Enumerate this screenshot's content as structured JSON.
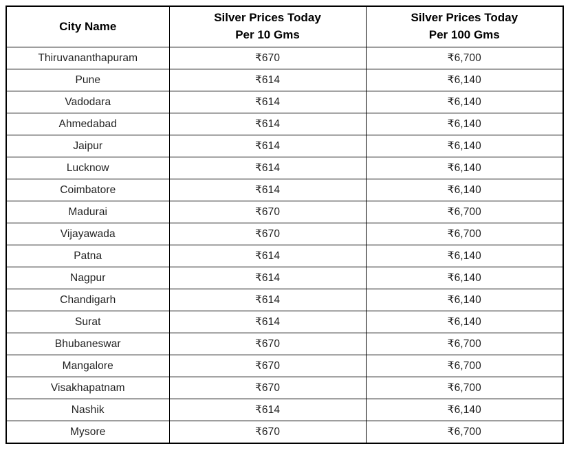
{
  "page": {
    "background": "#ffffff",
    "border_color": "#000000",
    "header_text_color": "#000000",
    "body_text_color": "#1f1f1f"
  },
  "table": {
    "columns": [
      {
        "id": "city-name",
        "label": "City Name"
      },
      {
        "id": "price-per-10-gms",
        "label": "Silver Prices Today\nPer 10 Gms"
      },
      {
        "id": "price-per-100-gms",
        "label": "Silver Prices Today\nPer 100 Gms"
      }
    ],
    "rows": [
      [
        "Thiruvananthapuram",
        "₹670",
        "₹6,700"
      ],
      [
        "Pune",
        "₹614",
        "₹6,140"
      ],
      [
        "Vadodara",
        "₹614",
        "₹6,140"
      ],
      [
        "Ahmedabad",
        "₹614",
        "₹6,140"
      ],
      [
        "Jaipur",
        "₹614",
        "₹6,140"
      ],
      [
        "Lucknow",
        "₹614",
        "₹6,140"
      ],
      [
        "Coimbatore",
        "₹614",
        "₹6,140"
      ],
      [
        "Madurai",
        "₹670",
        "₹6,700"
      ],
      [
        "Vijayawada",
        "₹670",
        "₹6,700"
      ],
      [
        "Patna",
        "₹614",
        "₹6,140"
      ],
      [
        "Nagpur",
        "₹614",
        "₹6,140"
      ],
      [
        "Chandigarh",
        "₹614",
        "₹6,140"
      ],
      [
        "Surat",
        "₹614",
        "₹6,140"
      ],
      [
        "Bhubaneswar",
        "₹670",
        "₹6,700"
      ],
      [
        "Mangalore",
        "₹670",
        "₹6,700"
      ],
      [
        "Visakhapatnam",
        "₹670",
        "₹6,700"
      ],
      [
        "Nashik",
        "₹614",
        "₹6,140"
      ],
      [
        "Mysore",
        "₹670",
        "₹6,700"
      ]
    ]
  },
  "chart_data": {
    "type": "table",
    "columns": [
      "City Name",
      "Silver Prices Today Per 10 Gms",
      "Silver Prices Today Per 100 Gms"
    ],
    "categories": [
      "Thiruvananthapuram",
      "Pune",
      "Vadodara",
      "Ahmedabad",
      "Jaipur",
      "Lucknow",
      "Coimbatore",
      "Madurai",
      "Vijayawada",
      "Patna",
      "Nagpur",
      "Chandigarh",
      "Surat",
      "Bhubaneswar",
      "Mangalore",
      "Visakhapatnam",
      "Nashik",
      "Mysore"
    ],
    "series": [
      {
        "name": "Silver Prices Today Per 10 Gms",
        "currency_symbol": "₹",
        "values": [
          670,
          614,
          614,
          614,
          614,
          614,
          614,
          670,
          670,
          614,
          614,
          614,
          614,
          670,
          670,
          670,
          614,
          670
        ]
      },
      {
        "name": "Silver Prices Today Per 100 Gms",
        "currency_symbol": "₹",
        "values": [
          6700,
          6140,
          6140,
          6140,
          6140,
          6140,
          6140,
          6700,
          6700,
          6140,
          6140,
          6140,
          6140,
          6700,
          6700,
          6700,
          6140,
          6700
        ]
      }
    ]
  }
}
